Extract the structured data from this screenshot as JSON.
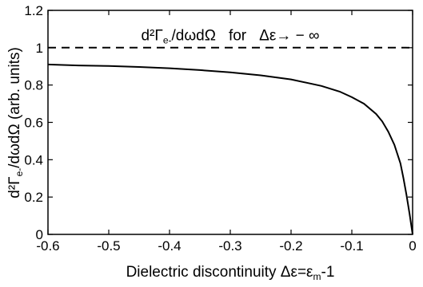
{
  "chart_data": {
    "type": "line",
    "xlabel": "Dielectric discontinuity Δε=ε",
    "xlabel_sub": "m",
    "xlabel_tail": "-1",
    "ylabel": "d²Γ",
    "ylabel_sub": "e-",
    "ylabel_tail": "/dωdΩ (arb. units)",
    "xlim": [
      -0.6,
      0
    ],
    "ylim": [
      0,
      1.2
    ],
    "x_ticks": [
      -0.6,
      -0.5,
      -0.4,
      -0.3,
      -0.2,
      -0.1,
      0
    ],
    "x_tick_labels": [
      "-0.6",
      "-0.5",
      "-0.4",
      "-0.3",
      "-0.2",
      "-0.1",
      "0"
    ],
    "y_ticks": [
      0,
      0.2,
      0.4,
      0.6,
      0.8,
      1,
      1.2
    ],
    "y_tick_labels": [
      "0",
      "0.2",
      "0.4",
      "0.6",
      "0.8",
      "1",
      "1.2"
    ],
    "grid": false,
    "series": [
      {
        "style": "solid",
        "color": "#000000",
        "x": [
          -0.6,
          -0.55,
          -0.5,
          -0.45,
          -0.4,
          -0.35,
          -0.3,
          -0.25,
          -0.2,
          -0.15,
          -0.12,
          -0.1,
          -0.08,
          -0.06,
          -0.05,
          -0.04,
          -0.03,
          -0.02,
          -0.015,
          -0.01,
          -0.005,
          0
        ],
        "y": [
          0.91,
          0.905,
          0.902,
          0.897,
          0.89,
          0.88,
          0.868,
          0.852,
          0.83,
          0.795,
          0.765,
          0.735,
          0.7,
          0.645,
          0.605,
          0.55,
          0.48,
          0.38,
          0.3,
          0.21,
          0.11,
          0.0
        ]
      },
      {
        "style": "dashed",
        "color": "#000000",
        "x": [
          -0.6,
          0
        ],
        "y": [
          1,
          1
        ]
      }
    ],
    "annotation": {
      "part1": "d²Γ",
      "part1_sub": "e-",
      "part2": "/dωdΩ",
      "part3": "for",
      "part4": "Δε→ − ∞",
      "x": -0.3,
      "y": 1.07
    }
  }
}
